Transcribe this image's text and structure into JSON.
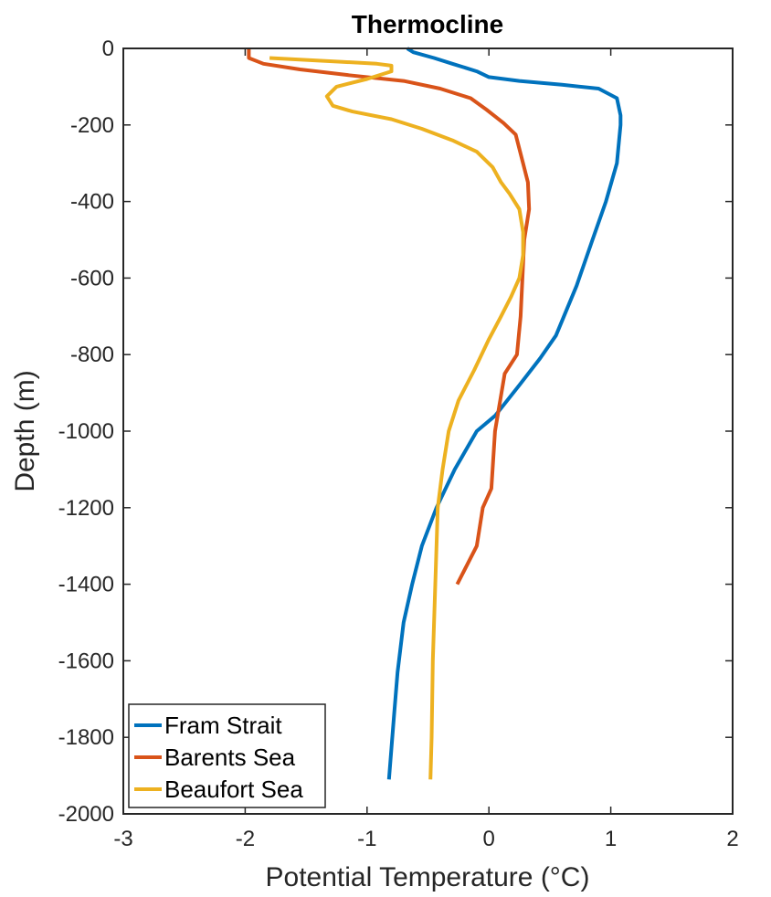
{
  "chart_data": {
    "type": "line",
    "title": "Thermocline",
    "xlabel": "Potential Temperature (°C)",
    "ylabel": "Depth (m)",
    "xlim": [
      -3,
      2
    ],
    "ylim": [
      -2000,
      0
    ],
    "xticks": [
      "-3",
      "-2",
      "-1",
      "0",
      "1",
      "2"
    ],
    "yticks": [
      "0",
      "-200",
      "-400",
      "-600",
      "-800",
      "-1000",
      "-1200",
      "-1400",
      "-1600",
      "-1800",
      "-2000"
    ],
    "grid": false,
    "legend_position": "bottom-left",
    "series": [
      {
        "name": "Fram Strait",
        "color": "#0072BD",
        "points": [
          [
            -0.67,
            0
          ],
          [
            -0.62,
            -10
          ],
          [
            -0.45,
            -25
          ],
          [
            -0.3,
            -40
          ],
          [
            -0.1,
            -60
          ],
          [
            0,
            -75
          ],
          [
            0.25,
            -85
          ],
          [
            0.6,
            -95
          ],
          [
            0.9,
            -105
          ],
          [
            1.05,
            -130
          ],
          [
            1.08,
            -175
          ],
          [
            1.08,
            -200
          ],
          [
            1.05,
            -300
          ],
          [
            0.96,
            -400
          ],
          [
            0.85,
            -500
          ],
          [
            0.72,
            -620
          ],
          [
            0.55,
            -750
          ],
          [
            0.42,
            -810
          ],
          [
            0.25,
            -880
          ],
          [
            0.05,
            -960
          ],
          [
            -0.1,
            -1000
          ],
          [
            -0.28,
            -1100
          ],
          [
            -0.43,
            -1200
          ],
          [
            -0.55,
            -1300
          ],
          [
            -0.63,
            -1400
          ],
          [
            -0.7,
            -1500
          ],
          [
            -0.75,
            -1630
          ],
          [
            -0.78,
            -1750
          ],
          [
            -0.82,
            -1910
          ]
        ]
      },
      {
        "name": "Barents Sea",
        "color": "#D95319",
        "points": [
          [
            -1.97,
            0
          ],
          [
            -1.97,
            -25
          ],
          [
            -1.85,
            -40
          ],
          [
            -1.55,
            -55
          ],
          [
            -1.15,
            -70
          ],
          [
            -0.7,
            -85
          ],
          [
            -0.4,
            -105
          ],
          [
            -0.15,
            -130
          ],
          [
            -0.02,
            -160
          ],
          [
            0.12,
            -195
          ],
          [
            0.22,
            -225
          ],
          [
            0.28,
            -300
          ],
          [
            0.32,
            -350
          ],
          [
            0.33,
            -420
          ],
          [
            0.29,
            -500
          ],
          [
            0.26,
            -700
          ],
          [
            0.23,
            -800
          ],
          [
            0.13,
            -850
          ],
          [
            0.05,
            -1000
          ],
          [
            0.02,
            -1150
          ],
          [
            -0.05,
            -1200
          ],
          [
            -0.1,
            -1300
          ],
          [
            -0.26,
            -1400
          ]
        ]
      },
      {
        "name": "Beaufort Sea",
        "color": "#EDB120",
        "points": [
          [
            -1.8,
            -25
          ],
          [
            -1.5,
            -30
          ],
          [
            -1.2,
            -35
          ],
          [
            -0.92,
            -40
          ],
          [
            -0.8,
            -45
          ],
          [
            -0.8,
            -60
          ],
          [
            -1.0,
            -80
          ],
          [
            -1.25,
            -100
          ],
          [
            -1.33,
            -125
          ],
          [
            -1.28,
            -150
          ],
          [
            -1.12,
            -165
          ],
          [
            -0.8,
            -185
          ],
          [
            -0.55,
            -210
          ],
          [
            -0.3,
            -240
          ],
          [
            -0.1,
            -270
          ],
          [
            0.03,
            -310
          ],
          [
            0.1,
            -350
          ],
          [
            0.17,
            -380
          ],
          [
            0.25,
            -420
          ],
          [
            0.28,
            -480
          ],
          [
            0.28,
            -540
          ],
          [
            0.25,
            -600
          ],
          [
            0.18,
            -650
          ],
          [
            0.1,
            -700
          ],
          [
            0.0,
            -760
          ],
          [
            -0.12,
            -840
          ],
          [
            -0.25,
            -920
          ],
          [
            -0.33,
            -1000
          ],
          [
            -0.38,
            -1100
          ],
          [
            -0.42,
            -1200
          ],
          [
            -0.44,
            -1400
          ],
          [
            -0.46,
            -1600
          ],
          [
            -0.47,
            -1800
          ],
          [
            -0.48,
            -1910
          ]
        ]
      }
    ]
  }
}
